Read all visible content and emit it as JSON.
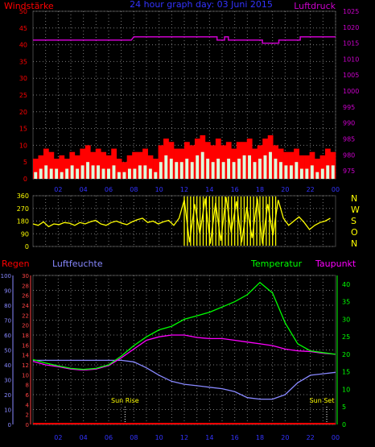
{
  "colors": {
    "background": "#000000",
    "grid": "#7a7a7a",
    "wind_gust": "#ff0000",
    "wind_avg": "#ffff66",
    "wind_mean": "#ddffdd",
    "pressure": "#cc00cc",
    "direction": "#ffff00",
    "rain": "#ff0000",
    "humidity": "#8888ff",
    "temperature": "#00ff00",
    "dewpoint": "#ff00ff",
    "sun": "#ffff00",
    "title": "#3333ff"
  },
  "chart_data": [
    {
      "type": "bar",
      "title": "24 hour graph day: 03 Juni 2015",
      "left_axis_label": "Windstärke",
      "right_axis_label": "Luftdruck",
      "x_ticks": [
        "02",
        "04",
        "06",
        "08",
        "10",
        "12",
        "14",
        "16",
        "18",
        "20",
        "22",
        "00"
      ],
      "y_left_ticks": [
        "0",
        "5",
        "10",
        "15",
        "20",
        "25",
        "30",
        "35",
        "40",
        "45",
        "50"
      ],
      "y_left_range": [
        0,
        50
      ],
      "y_right_ticks": [
        "975",
        "980",
        "985",
        "990",
        "995",
        "1000",
        "1005",
        "1010",
        "1015",
        "1020",
        "1025"
      ],
      "y_right_range": [
        972.5,
        1025
      ],
      "grid": true,
      "wind_series_hour_step": 2,
      "wind_gust_values": [
        6,
        7,
        9,
        8,
        6,
        7,
        6,
        8,
        7,
        9,
        10,
        8,
        9,
        8,
        7,
        9,
        6,
        5,
        7,
        8,
        8,
        9,
        7,
        6,
        10,
        12,
        11,
        9,
        9,
        11,
        10,
        12,
        13,
        11,
        10,
        12,
        10,
        11,
        9,
        11,
        11,
        12,
        9,
        10,
        12,
        13,
        10,
        9,
        8,
        8,
        9,
        7,
        7,
        8,
        6,
        7,
        9,
        8
      ],
      "wind_avg_values": [
        2,
        3,
        4,
        3,
        3,
        2,
        3,
        4,
        3,
        4,
        5,
        4,
        4,
        3,
        3,
        4,
        2,
        2,
        3,
        3,
        4,
        4,
        3,
        2,
        5,
        7,
        6,
        5,
        5,
        6,
        5,
        7,
        8,
        6,
        5,
        6,
        5,
        6,
        5,
        6,
        7,
        7,
        5,
        6,
        7,
        8,
        6,
        5,
        4,
        4,
        5,
        3,
        3,
        4,
        2,
        3,
        4,
        4
      ],
      "pressure_series": [
        {
          "h": 0,
          "v": 1016
        },
        {
          "h": 7.8,
          "v": 1016
        },
        {
          "h": 8,
          "v": 1017
        },
        {
          "h": 14.6,
          "v": 1017
        },
        {
          "h": 14.6,
          "v": 1016
        },
        {
          "h": 15.2,
          "v": 1016
        },
        {
          "h": 15.2,
          "v": 1017
        },
        {
          "h": 15.5,
          "v": 1017
        },
        {
          "h": 15.5,
          "v": 1016
        },
        {
          "h": 18.2,
          "v": 1016
        },
        {
          "h": 18.2,
          "v": 1015
        },
        {
          "h": 19.5,
          "v": 1015
        },
        {
          "h": 19.5,
          "v": 1016
        },
        {
          "h": 21.2,
          "v": 1016
        },
        {
          "h": 21.2,
          "v": 1017
        },
        {
          "h": 24,
          "v": 1017
        }
      ]
    },
    {
      "type": "line",
      "title": "Wind direction",
      "y_ticks": [
        "0",
        "90",
        "180",
        "270",
        "360"
      ],
      "y_range": [
        0,
        360
      ],
      "compass_labels": [
        "N",
        "W",
        "S",
        "O",
        "N"
      ],
      "grid": true,
      "direction_values": [
        160,
        150,
        175,
        140,
        160,
        155,
        170,
        165,
        150,
        170,
        160,
        175,
        185,
        160,
        150,
        170,
        180,
        165,
        155,
        175,
        190,
        200,
        170,
        180,
        160,
        175,
        185,
        150,
        200,
        330,
        30,
        300,
        90,
        340,
        20,
        310,
        40,
        350,
        100,
        320,
        30,
        280,
        60,
        340,
        20,
        300,
        80,
        330,
        200,
        150,
        180,
        210,
        170,
        120,
        150,
        170,
        180,
        200
      ],
      "direction_hour_step": 0.4
    },
    {
      "type": "line",
      "labels": {
        "rain": "Regen",
        "humidity": "Luftfeuchte",
        "temperature": "Temperatur",
        "dewpoint": "Taupunkt"
      },
      "y_humidity_ticks": [
        "0",
        "10",
        "20",
        "30",
        "40",
        "50",
        "60",
        "70",
        "80",
        "90",
        "100"
      ],
      "y_rain_ticks": [
        "0",
        "2",
        "4",
        "6",
        "8",
        "10",
        "12",
        "14",
        "16",
        "18",
        "20",
        "22",
        "24",
        "26",
        "28",
        "30"
      ],
      "y_temp_ticks": [
        "0",
        "5",
        "10",
        "15",
        "20",
        "25",
        "30",
        "35",
        "40"
      ],
      "temp_range": [
        0,
        42.5
      ],
      "x_ticks": [
        "02",
        "04",
        "06",
        "08",
        "10",
        "12",
        "14",
        "16",
        "18",
        "20",
        "22",
        "00"
      ],
      "sun_rise_label": "Sun Rise",
      "sun_set_label": "Sun Set",
      "sun_rise_hour": 7.3,
      "sun_set_hour": 23.3,
      "grid": true,
      "series_hour_step": 1,
      "temperature_values": [
        18.5,
        17.5,
        16.7,
        16.0,
        15.7,
        16.0,
        17.0,
        19.5,
        22.5,
        25.0,
        27.0,
        28.0,
        30.0,
        31.0,
        32.0,
        33.5,
        35.0,
        37.0,
        40.5,
        37.5,
        29.0,
        23.0,
        21.0,
        20.5,
        20.0
      ],
      "dewpoint_values": [
        18.0,
        17.0,
        16.5,
        15.8,
        15.5,
        15.8,
        16.8,
        19.0,
        21.5,
        24.0,
        25.0,
        25.5,
        25.5,
        24.8,
        24.5,
        24.5,
        24.0,
        23.5,
        23.0,
        22.5,
        21.5,
        21.0,
        20.8,
        20.3,
        20.0
      ],
      "humidity_values": [
        43,
        43,
        43,
        43,
        43,
        43,
        43,
        43,
        42,
        38,
        33,
        29,
        27,
        26,
        25,
        24,
        22,
        18,
        17,
        17,
        20,
        28,
        33,
        34,
        35
      ]
    }
  ]
}
